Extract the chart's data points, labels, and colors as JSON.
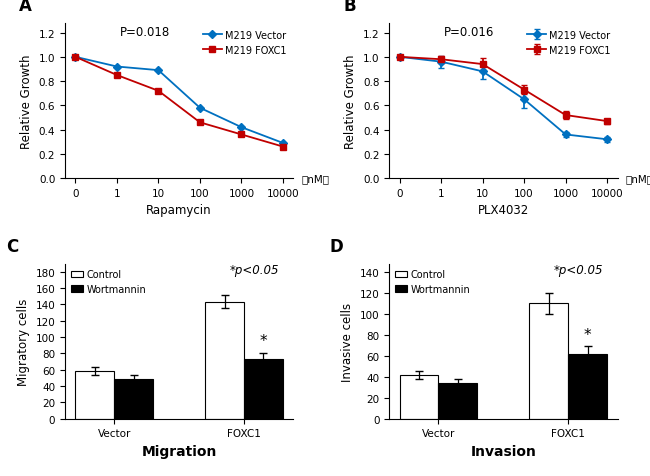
{
  "panel_A": {
    "label": "A",
    "title": "P=0.018",
    "xlabel": "Rapamycin",
    "ylabel": "Relative Growth",
    "xticklabels": [
      "0",
      "1",
      "10",
      "100",
      "1000",
      "10000"
    ],
    "nm_label": "（nM）",
    "vector_y": [
      1.0,
      0.92,
      0.89,
      0.58,
      0.42,
      0.29
    ],
    "foxc1_y": [
      1.0,
      0.85,
      0.72,
      0.46,
      0.36,
      0.26
    ],
    "vector_color": "#0070c0",
    "foxc1_color": "#c00000",
    "ylim": [
      0,
      1.28
    ],
    "yticks": [
      0,
      0.2,
      0.4,
      0.6,
      0.8,
      1.0,
      1.2
    ],
    "legend_labels": [
      "M219 Vector",
      "M219 FOXC1"
    ]
  },
  "panel_B": {
    "label": "B",
    "title": "P=0.016",
    "xlabel": "PLX4032",
    "ylabel": "Relative Growth",
    "xticklabels": [
      "0",
      "1",
      "10",
      "100",
      "1000",
      "10000"
    ],
    "nm_label": "（nM）",
    "vector_y": [
      1.0,
      0.96,
      0.88,
      0.65,
      0.36,
      0.32
    ],
    "foxc1_y": [
      1.0,
      0.98,
      0.94,
      0.73,
      0.52,
      0.47
    ],
    "vector_err": [
      0.01,
      0.05,
      0.06,
      0.07,
      0.02,
      0.02
    ],
    "foxc1_err": [
      0.01,
      0.03,
      0.05,
      0.04,
      0.03,
      0.02
    ],
    "vector_color": "#0070c0",
    "foxc1_color": "#c00000",
    "ylim": [
      0,
      1.28
    ],
    "yticks": [
      0,
      0.2,
      0.4,
      0.6,
      0.8,
      1.0,
      1.2
    ],
    "legend_labels": [
      "M219 Vector",
      "M219 FOXC1"
    ]
  },
  "panel_C": {
    "label": "C",
    "xlabel": "Migration",
    "ylabel": "Migratory cells",
    "categories": [
      "Vector",
      "FOXC1"
    ],
    "control_vals": [
      58,
      143
    ],
    "wortmannin_vals": [
      49,
      73
    ],
    "control_err": [
      5,
      8
    ],
    "wortmannin_err": [
      5,
      8
    ],
    "control_color": "white",
    "wortmannin_color": "black",
    "ylim": [
      0,
      190
    ],
    "yticks": [
      0,
      20,
      40,
      60,
      80,
      100,
      120,
      140,
      160,
      180
    ],
    "legend_labels": [
      "Control",
      "Wortmannin"
    ],
    "sig_text": "*p<0.05"
  },
  "panel_D": {
    "label": "D",
    "xlabel": "Invasion",
    "ylabel": "Invasive cells",
    "categories": [
      "Vector",
      "FOXC1"
    ],
    "control_vals": [
      42,
      110
    ],
    "wortmannin_vals": [
      34,
      62
    ],
    "control_err": [
      4,
      10
    ],
    "wortmannin_err": [
      4,
      7
    ],
    "control_color": "white",
    "wortmannin_color": "black",
    "ylim": [
      0,
      148
    ],
    "yticks": [
      0,
      20,
      40,
      60,
      80,
      100,
      120,
      140
    ],
    "legend_labels": [
      "Control",
      "Wortmannin"
    ],
    "sig_text": "*p<0.05"
  },
  "fig_bg": "white",
  "font_size": 8.5,
  "label_fontsize": 12
}
